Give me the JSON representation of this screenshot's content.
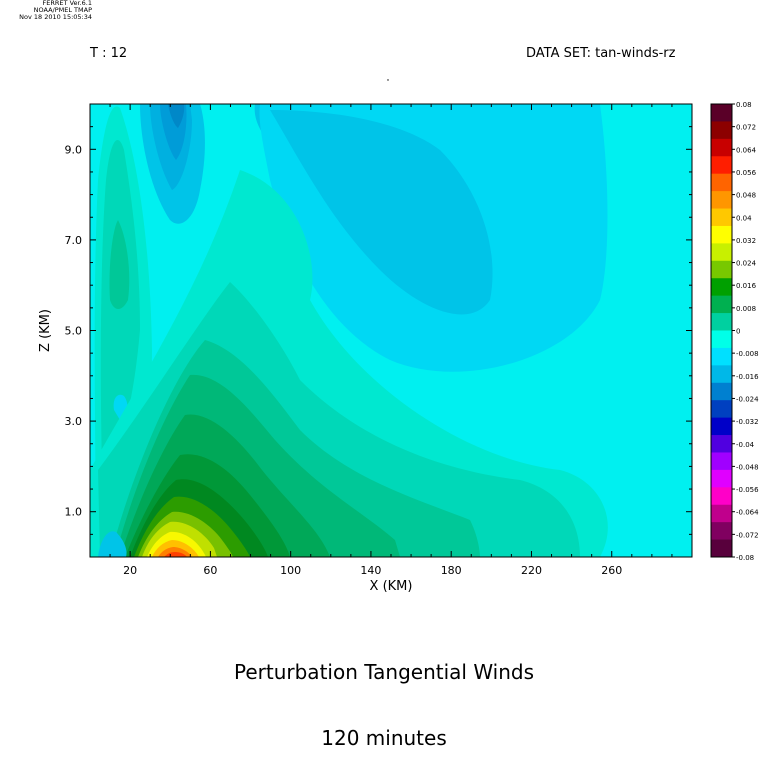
{
  "header": {
    "ferret_lines": [
      "FERRET Ver.6.1",
      "NOAA/PMEL TMAP",
      "Nov 18 2010 15:05:34"
    ],
    "time_label": "T : 12",
    "dataset_label": "DATA SET: tan-winds-rz"
  },
  "chart_data": {
    "type": "heatmap",
    "title_lines": [
      "Perturbation Tangential Winds",
      "120 minutes"
    ],
    "xlabel": "X (KM)",
    "ylabel": "Z (KM)",
    "xlim": [
      0,
      300
    ],
    "ylim": [
      0,
      10
    ],
    "x_ticks": [
      20,
      60,
      100,
      140,
      180,
      220,
      260
    ],
    "y_ticks": [
      "1.0",
      "3.0",
      "5.0",
      "7.0",
      "9.0"
    ],
    "y_tick_values": [
      1,
      3,
      5,
      7,
      9
    ],
    "colorbar": {
      "range": [
        -0.08,
        0.08
      ],
      "labels": [
        "0.08",
        "0.072",
        "0.064",
        "0.056",
        "0.048",
        "0.04",
        "0.032",
        "0.024",
        "0.016",
        "0.008",
        "0",
        "-0.008",
        "-0.016",
        "-0.024",
        "-0.032",
        "-0.04",
        "-0.048",
        "-0.056",
        "-0.064",
        "-0.072",
        "-0.08"
      ],
      "colors": [
        "#5a0028",
        "#8c0000",
        "#c80000",
        "#ff1e00",
        "#ff6400",
        "#ff9600",
        "#ffc800",
        "#ffff00",
        "#c8f000",
        "#78c800",
        "#00a000",
        "#00b050",
        "#00d0a0",
        "#00ffe8",
        "#00e0ff",
        "#00b8e8",
        "#0080d0",
        "#0040c0",
        "#0000c8",
        "#5000e0",
        "#a000ff",
        "#e000ff",
        "#ff00c8",
        "#c0008c",
        "#800060",
        "#58003c"
      ]
    },
    "field_colors": {
      "strong_neg": "#009cd8",
      "mid_neg": "#00c4e8",
      "weak_neg": "#00d8f4",
      "zero": "#00f0f0",
      "weak_pos": "#00e8d0",
      "pos1": "#00d8b8",
      "pos2": "#00c898",
      "pos3": "#00b878",
      "pos4": "#00a858",
      "pos5": "#009838",
      "pos6": "#008820",
      "pos7": "#2c9c00",
      "pos8": "#78c000",
      "pos9": "#c0e000",
      "pos10": "#f8f800",
      "pos11": "#ffc000",
      "pos12": "#ff8000",
      "pos13": "#ff4000",
      "pos14": "#f00000"
    }
  }
}
